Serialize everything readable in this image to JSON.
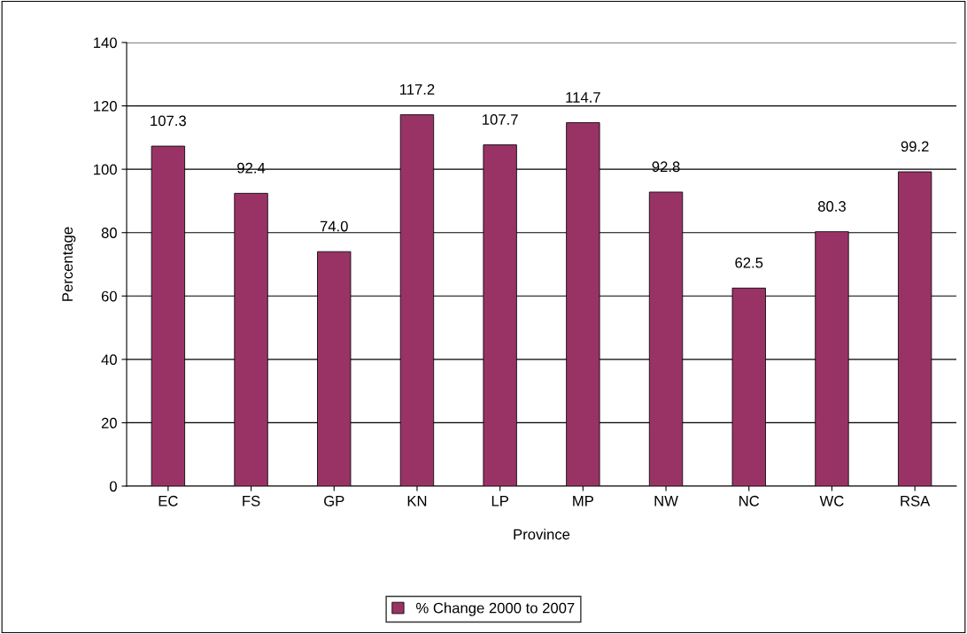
{
  "chart_data": {
    "type": "bar",
    "xlabel": "Province",
    "ylabel": "Percentage",
    "categories": [
      "EC",
      "FS",
      "GP",
      "KN",
      "LP",
      "MP",
      "NW",
      "NC",
      "WC",
      "RSA"
    ],
    "series": [
      {
        "name": "% Change 2000 to 2007",
        "color": "#993366",
        "values": [
          107.3,
          92.4,
          74.0,
          117.2,
          107.7,
          114.7,
          92.8,
          62.5,
          80.3,
          99.2
        ],
        "value_labels": [
          "107.3",
          "92.4",
          "74.0",
          "117.2",
          "107.7",
          "114.7",
          "92.8",
          "62.5",
          "80.3",
          "99.2"
        ]
      }
    ],
    "ylim": [
      0,
      140
    ],
    "yticks": [
      0,
      20,
      40,
      60,
      80,
      100,
      120,
      140
    ],
    "grid": "y",
    "legend": "bottom"
  }
}
